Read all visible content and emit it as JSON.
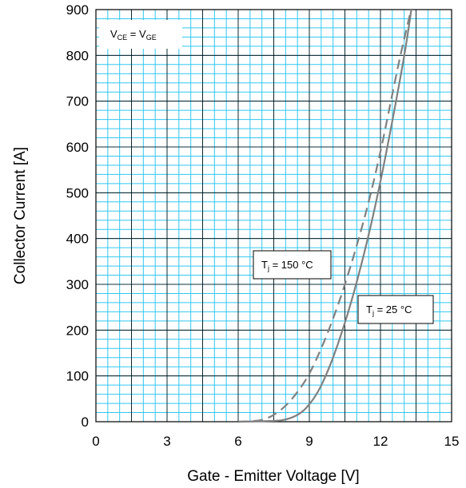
{
  "chart_data": {
    "type": "line",
    "xlabel": "Gate - Emitter Voltage [V]",
    "ylabel": "Collector Current [A]",
    "xlim": [
      0,
      15
    ],
    "ylim": [
      0,
      900
    ],
    "x_ticks": [
      "0",
      "3",
      "6",
      "9",
      "12",
      "15"
    ],
    "y_ticks": [
      "0",
      "100",
      "200",
      "300",
      "400",
      "500",
      "600",
      "700",
      "800",
      "900"
    ],
    "minor_grid_color": "#33c7f0",
    "major_grid_color": "#000000",
    "curve_color": "#808080",
    "series": [
      {
        "label": "25",
        "style": "solid",
        "points": [
          [
            6.0,
            0
          ],
          [
            7.0,
            1
          ],
          [
            7.8,
            3
          ],
          [
            8.3,
            10
          ],
          [
            8.7,
            22
          ],
          [
            9.0,
            38
          ],
          [
            9.3,
            60
          ],
          [
            9.6,
            90
          ],
          [
            10.0,
            140
          ],
          [
            10.4,
            200
          ],
          [
            10.8,
            268
          ],
          [
            11.2,
            345
          ],
          [
            11.6,
            430
          ],
          [
            12.0,
            525
          ],
          [
            12.4,
            630
          ],
          [
            12.8,
            740
          ],
          [
            13.1,
            830
          ],
          [
            13.3,
            900
          ]
        ]
      },
      {
        "label": "150",
        "style": "dashed",
        "points": [
          [
            6.0,
            0
          ],
          [
            6.5,
            1
          ],
          [
            7.0,
            4
          ],
          [
            7.5,
            15
          ],
          [
            8.0,
            35
          ],
          [
            8.5,
            65
          ],
          [
            9.0,
            105
          ],
          [
            9.5,
            160
          ],
          [
            10.0,
            225
          ],
          [
            10.5,
            300
          ],
          [
            11.0,
            385
          ],
          [
            11.5,
            480
          ],
          [
            12.0,
            590
          ],
          [
            12.4,
            690
          ],
          [
            12.8,
            790
          ],
          [
            13.2,
            880
          ],
          [
            13.3,
            900
          ]
        ]
      }
    ],
    "annotations": {
      "vce": {
        "v1": "V",
        "s1": "CE",
        "mid": " = V",
        "s2": "GE"
      },
      "tj150": {
        "pre": "T",
        "sub": "j",
        "post": " = 150 °C"
      },
      "tj25": {
        "pre": "T",
        "sub": "j",
        "post": " = 25 °C"
      }
    }
  }
}
